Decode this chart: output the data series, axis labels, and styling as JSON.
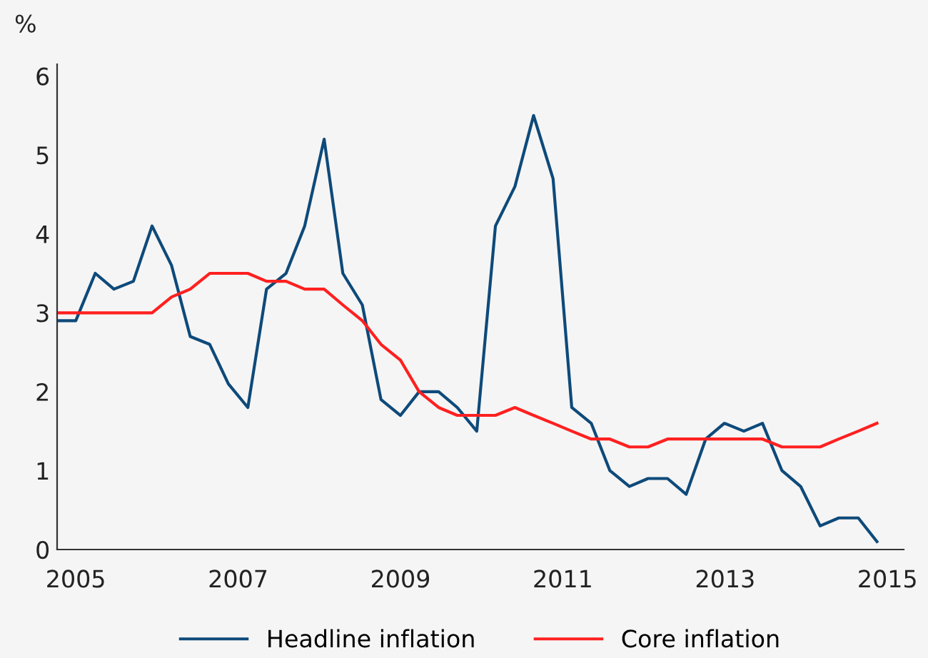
{
  "chart_data": {
    "type": "line",
    "ylabel": "%",
    "x": [
      2004.77,
      2005.0,
      2005.24,
      2005.47,
      2005.71,
      2005.94,
      2006.18,
      2006.41,
      2006.65,
      2006.88,
      2007.12,
      2007.35,
      2007.59,
      2007.82,
      2008.06,
      2008.29,
      2008.53,
      2008.76,
      2009.0,
      2009.23,
      2009.47,
      2009.7,
      2009.94,
      2010.17,
      2010.41,
      2010.64,
      2010.88,
      2011.11,
      2011.35,
      2011.58,
      2011.82,
      2012.05,
      2012.29,
      2012.52,
      2012.76,
      2012.99,
      2013.23,
      2013.46,
      2013.7,
      2013.93,
      2014.17,
      2014.4,
      2014.64,
      2014.87
    ],
    "series": [
      {
        "name": "Headline inflation",
        "color": "#0e4a7a",
        "values": [
          2.9,
          2.9,
          3.5,
          3.3,
          3.4,
          4.1,
          3.6,
          2.7,
          2.6,
          2.1,
          1.8,
          3.3,
          3.5,
          4.1,
          5.2,
          3.5,
          3.1,
          1.9,
          1.7,
          2.0,
          2.0,
          1.8,
          1.5,
          4.1,
          4.6,
          5.5,
          4.7,
          1.8,
          1.6,
          1.0,
          0.8,
          0.9,
          0.9,
          0.7,
          1.4,
          1.6,
          1.5,
          1.6,
          1.0,
          0.8,
          0.3,
          0.4,
          0.4,
          0.1
        ]
      },
      {
        "name": "Core inflation",
        "color": "#ff2020",
        "values": [
          3.0,
          3.0,
          3.0,
          3.0,
          3.0,
          3.0,
          3.2,
          3.3,
          3.5,
          3.5,
          3.5,
          3.4,
          3.4,
          3.3,
          3.3,
          3.1,
          2.9,
          2.6,
          2.4,
          2.0,
          1.8,
          1.7,
          1.7,
          1.7,
          1.8,
          1.7,
          1.6,
          1.5,
          1.4,
          1.4,
          1.3,
          1.3,
          1.4,
          1.4,
          1.4,
          1.4,
          1.4,
          1.4,
          1.3,
          1.3,
          1.3,
          1.4,
          1.5,
          1.6
        ]
      }
    ],
    "xlim": [
      2004.77,
      2015.2
    ],
    "xticks": [
      2005,
      2007,
      2009,
      2011,
      2013,
      2015
    ],
    "ylim": [
      0,
      6.15
    ],
    "yticks": [
      0,
      1,
      2,
      3,
      4,
      5,
      6
    ],
    "grid": false,
    "legend": "bottom",
    "marker": "none",
    "line_style": "solid"
  }
}
